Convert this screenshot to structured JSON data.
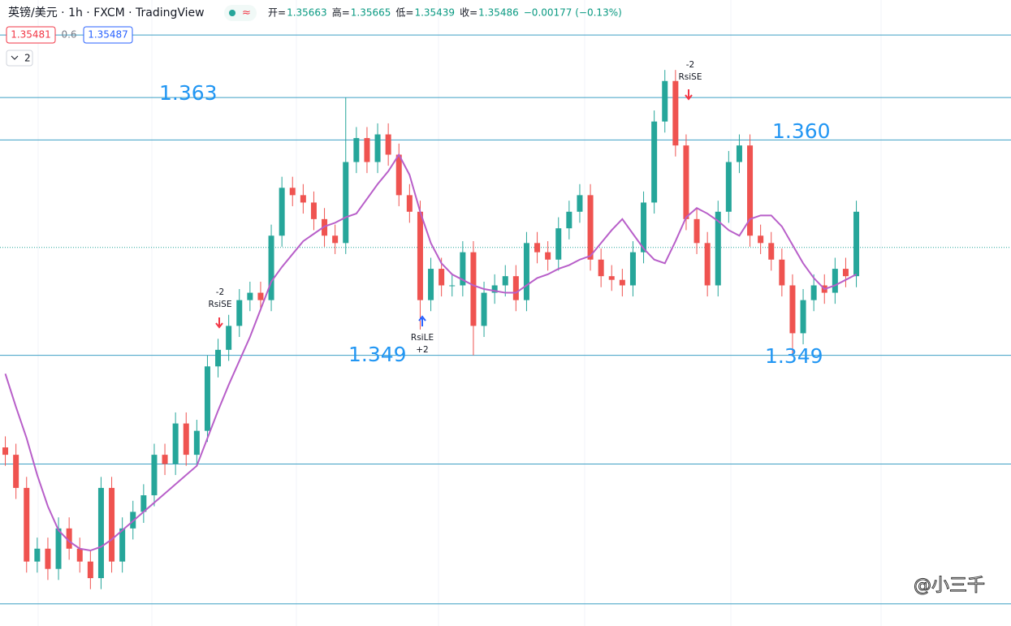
{
  "header": {
    "title": "英镑/美元 · 1h · FXCM · TradingView",
    "badge": "≈",
    "ohlc": [
      {
        "label": "开=",
        "value": "1.35663"
      },
      {
        "label": "高=",
        "value": "1.35665"
      },
      {
        "label": "低=",
        "value": "1.35439"
      },
      {
        "label": "收=",
        "value": "1.35486"
      }
    ],
    "change": "−0.00177 (−0.13%)",
    "sell_price": "1.35481",
    "spread": "0.6",
    "buy_price": "1.35487",
    "indicator_count": "2"
  },
  "chart_data": {
    "type": "candlestick",
    "up_color": "#26a69a",
    "down_color": "#ef5350",
    "line_color": "#3d9fc4",
    "ylim": [
      1.3343,
      1.3683
    ],
    "categories": [
      null,
      null,
      null,
      null,
      null,
      null,
      null,
      null,
      null,
      null,
      null,
      null,
      null,
      null,
      null,
      null,
      null,
      null,
      null,
      null,
      null,
      null,
      null,
      null,
      null,
      null,
      null,
      null,
      null,
      null,
      null,
      null,
      null,
      null,
      null,
      null,
      null,
      null,
      null,
      null,
      null,
      null,
      null,
      null,
      null,
      null,
      null,
      null,
      null,
      null,
      null,
      null,
      null,
      null,
      null,
      null,
      null,
      null,
      null,
      null,
      null,
      null,
      null,
      null,
      null,
      null,
      null,
      null,
      null,
      null,
      null,
      null,
      null,
      null,
      null,
      null,
      null,
      null,
      null,
      null,
      null
    ],
    "open": [
      1.344,
      1.3436,
      1.3418,
      1.3378,
      1.3385,
      1.3374,
      1.3396,
      1.3385,
      1.3378,
      1.3369,
      1.3418,
      1.3378,
      1.3396,
      1.3405,
      1.3414,
      1.3436,
      1.3431,
      1.3453,
      1.3436,
      1.3449,
      1.3484,
      1.3493,
      1.3506,
      1.352,
      1.3524,
      1.352,
      1.3555,
      1.3581,
      1.3577,
      1.3573,
      1.3564,
      1.3555,
      1.3551,
      1.3595,
      1.3608,
      1.3595,
      1.361,
      1.3599,
      1.3577,
      1.3568,
      1.352,
      1.3537,
      1.3528,
      1.3528,
      1.3546,
      1.3506,
      1.3524,
      1.3528,
      1.3533,
      1.352,
      1.3551,
      1.3546,
      1.3542,
      1.3559,
      1.3568,
      1.3577,
      1.3542,
      1.3533,
      1.3531,
      1.3528,
      1.3546,
      1.3573,
      1.3617,
      1.3639,
      1.3604,
      1.3564,
      1.3551,
      1.3528,
      1.3568,
      1.3595,
      1.3604,
      1.3555,
      1.3551,
      1.3542,
      1.3528,
      1.3502,
      1.352,
      1.3528,
      1.3524,
      1.3537,
      1.3533
    ],
    "high": [
      1.3446,
      1.3442,
      1.3424,
      1.3391,
      1.3391,
      1.3402,
      1.3402,
      1.3391,
      1.3384,
      1.3424,
      1.3424,
      1.3402,
      1.3411,
      1.342,
      1.3442,
      1.3442,
      1.3459,
      1.3459,
      1.3455,
      1.349,
      1.3499,
      1.3512,
      1.3526,
      1.353,
      1.353,
      1.3561,
      1.3587,
      1.3587,
      1.3583,
      1.3579,
      1.357,
      1.3561,
      1.363,
      1.3614,
      1.3614,
      1.3616,
      1.3616,
      1.3605,
      1.3583,
      1.3574,
      1.3543,
      1.3543,
      1.3534,
      1.3552,
      1.3552,
      1.353,
      1.3534,
      1.3539,
      1.3539,
      1.3557,
      1.3557,
      1.3552,
      1.3565,
      1.3574,
      1.3583,
      1.3583,
      1.3548,
      1.3539,
      1.3537,
      1.3552,
      1.3579,
      1.3623,
      1.3645,
      1.3645,
      1.361,
      1.357,
      1.3557,
      1.3574,
      1.3601,
      1.361,
      1.361,
      1.3561,
      1.3557,
      1.3548,
      1.3534,
      1.3526,
      1.3534,
      1.3534,
      1.3543,
      1.3543,
      1.3574
    ],
    "low": [
      1.343,
      1.3412,
      1.3372,
      1.3372,
      1.3368,
      1.3368,
      1.3379,
      1.3372,
      1.3363,
      1.3363,
      1.3372,
      1.3372,
      1.339,
      1.3399,
      1.3408,
      1.3425,
      1.3425,
      1.343,
      1.343,
      1.3443,
      1.3478,
      1.3487,
      1.35,
      1.3514,
      1.3514,
      1.3514,
      1.3549,
      1.3571,
      1.3567,
      1.3558,
      1.3549,
      1.3545,
      1.3545,
      1.3589,
      1.3589,
      1.3589,
      1.3593,
      1.3571,
      1.3562,
      1.3504,
      1.3514,
      1.3522,
      1.3522,
      1.3522,
      1.349,
      1.35,
      1.3518,
      1.3522,
      1.3514,
      1.3514,
      1.354,
      1.3536,
      1.3536,
      1.3553,
      1.3562,
      1.3536,
      1.3527,
      1.3525,
      1.3522,
      1.3522,
      1.354,
      1.3567,
      1.3611,
      1.3598,
      1.3558,
      1.3545,
      1.3522,
      1.3522,
      1.3562,
      1.3589,
      1.3549,
      1.3545,
      1.3536,
      1.3522,
      1.349,
      1.3496,
      1.3514,
      1.3518,
      1.3518,
      1.3527,
      1.3527
    ],
    "close": [
      1.3436,
      1.3418,
      1.3378,
      1.3385,
      1.3374,
      1.3396,
      1.3385,
      1.3378,
      1.3369,
      1.3418,
      1.3378,
      1.3396,
      1.3405,
      1.3414,
      1.3436,
      1.3431,
      1.3453,
      1.3436,
      1.3449,
      1.3484,
      1.3493,
      1.3506,
      1.352,
      1.3524,
      1.352,
      1.3555,
      1.3581,
      1.3577,
      1.3573,
      1.3564,
      1.3555,
      1.3551,
      1.3595,
      1.3608,
      1.3595,
      1.361,
      1.3599,
      1.3577,
      1.3568,
      1.352,
      1.3537,
      1.3528,
      1.3528,
      1.3546,
      1.3506,
      1.3524,
      1.3528,
      1.3533,
      1.352,
      1.3551,
      1.3546,
      1.3542,
      1.3559,
      1.3568,
      1.3577,
      1.3542,
      1.3533,
      1.3531,
      1.3528,
      1.3546,
      1.3573,
      1.3617,
      1.3639,
      1.3604,
      1.3564,
      1.3551,
      1.3528,
      1.3568,
      1.3595,
      1.3604,
      1.3555,
      1.3551,
      1.3542,
      1.3528,
      1.3502,
      1.352,
      1.3528,
      1.3524,
      1.3537,
      1.3533,
      1.3568
    ],
    "ma": {
      "color": "#b85fc9",
      "values": [
        1.348,
        1.3462,
        1.3445,
        1.3425,
        1.3408,
        1.3395,
        1.3389,
        1.3385,
        1.3384,
        1.3386,
        1.339,
        1.3395,
        1.34,
        1.3405,
        1.341,
        1.3415,
        1.342,
        1.3425,
        1.343,
        1.3445,
        1.346,
        1.3474,
        1.3487,
        1.35,
        1.3515,
        1.353,
        1.3538,
        1.3545,
        1.3552,
        1.3556,
        1.356,
        1.3562,
        1.3565,
        1.3567,
        1.3575,
        1.3583,
        1.359,
        1.3599,
        1.3588,
        1.3568,
        1.3551,
        1.354,
        1.3534,
        1.3531,
        1.3528,
        1.3526,
        1.3525,
        1.3524,
        1.3524,
        1.3528,
        1.3532,
        1.3534,
        1.3537,
        1.3539,
        1.3542,
        1.3544,
        1.3551,
        1.3558,
        1.3564,
        1.3556,
        1.3548,
        1.3542,
        1.354,
        1.3552,
        1.3565,
        1.357,
        1.3567,
        1.3563,
        1.3558,
        1.3555,
        1.3564,
        1.3566,
        1.3566,
        1.356,
        1.355,
        1.354,
        1.3532,
        1.3526,
        1.3528,
        1.3531,
        1.3534
      ]
    },
    "hlines": [
      1.3664,
      1.363,
      1.3607,
      1.349,
      1.3431,
      1.3355
    ],
    "last_price": 1.35486,
    "annotations": [
      "1.363",
      "1.360",
      "1.349",
      "1.349"
    ],
    "signals": [
      {
        "count": "-2",
        "label": "RsiSE"
      },
      {
        "count": "+2",
        "label": "RsiLE"
      },
      {
        "count": "-2",
        "label": "RsiSE"
      }
    ]
  },
  "watermark": "@小三千"
}
